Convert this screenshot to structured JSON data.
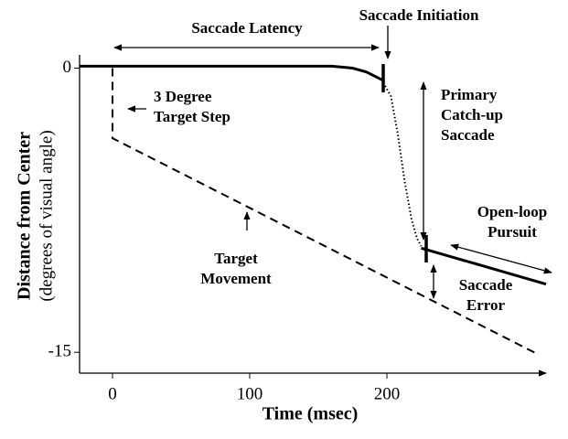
{
  "chart_data": {
    "type": "line",
    "xlabel": "Time (msec)",
    "ylabel": [
      "Distance from Center",
      "(degrees of visual angle)"
    ],
    "xlim": [
      -24,
      318
    ],
    "xticks": [
      0,
      100,
      200
    ],
    "ylim": [
      -16.1,
      0.7
    ],
    "yticks": [
      0,
      -15
    ],
    "series": [
      {
        "color": "#000000",
        "style": "solid",
        "x": [
          -24,
          160,
          175,
          185,
          196
        ],
        "values": [
          0.1,
          0.1,
          0,
          -0.2,
          -0.6
        ]
      },
      {
        "color": "#000000",
        "style": "dotted",
        "x": [
          196,
          203,
          208,
          213,
          218,
          222,
          225
        ],
        "values": [
          -0.6,
          -1.5,
          -3.5,
          -6,
          -8,
          -9,
          -9.4
        ]
      },
      {
        "color": "#000000",
        "style": "solid",
        "x": [
          225,
          316
        ],
        "values": [
          -9.5,
          -11.4
        ]
      },
      {
        "color": "#000000",
        "style": "dashed",
        "x": [
          0,
          0,
          310
        ],
        "values": [
          0,
          -3.7,
          -15.1
        ]
      }
    ],
    "annotations": [
      [
        "Saccade Latency"
      ],
      [
        "Saccade Initiation"
      ],
      [
        "3 Degree",
        "Target Step"
      ],
      [
        "Primary",
        "Catch-up",
        "Saccade"
      ],
      [
        "Open-loop",
        "Pursuit"
      ],
      [
        "Target",
        "Movement"
      ],
      [
        "Saccade",
        "Error"
      ]
    ]
  }
}
